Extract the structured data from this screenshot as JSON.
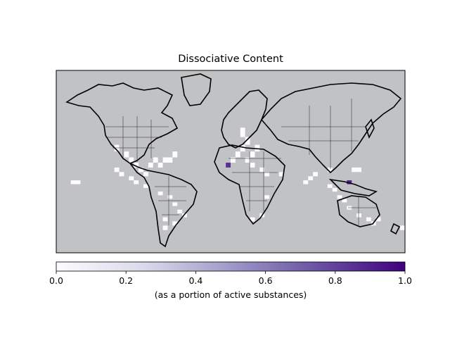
{
  "chart_data": {
    "type": "heatmap",
    "title": "Dissociative Content",
    "colorbar": {
      "label": "(as a portion of active substances)",
      "range": [
        0.0,
        1.0
      ],
      "ticks": [
        "0.0",
        "0.2",
        "0.4",
        "0.6",
        "0.8",
        "1.0"
      ],
      "tick_values": [
        0.0,
        0.2,
        0.4,
        0.6,
        0.8,
        1.0
      ],
      "colormap": [
        "#fcfbfd",
        "#dadaeb",
        "#9e9ac8",
        "#6a51a3",
        "#3f007d"
      ]
    },
    "background_color": "#c1c2c4",
    "grid_cells": [
      {
        "lon": -165,
        "lat": 20,
        "value": 0.0
      },
      {
        "lon": -160,
        "lat": 20,
        "value": 0.0
      },
      {
        "lon": -120,
        "lat": 55,
        "value": 0.0
      },
      {
        "lon": -110,
        "lat": 50,
        "value": 0.0
      },
      {
        "lon": -105,
        "lat": 45,
        "value": 0.0
      },
      {
        "lon": -100,
        "lat": 40,
        "value": 0.0
      },
      {
        "lon": -95,
        "lat": 35,
        "value": 0.0
      },
      {
        "lon": -90,
        "lat": 30,
        "value": 0.0
      },
      {
        "lon": -85,
        "lat": 40,
        "value": 0.0
      },
      {
        "lon": -80,
        "lat": 45,
        "value": 0.0
      },
      {
        "lon": -75,
        "lat": 40,
        "value": 0.0
      },
      {
        "lon": -70,
        "lat": 45,
        "value": 0.0
      },
      {
        "lon": -65,
        "lat": 45,
        "value": 0.0
      },
      {
        "lon": -60,
        "lat": 50,
        "value": 0.0
      },
      {
        "lon": -120,
        "lat": 35,
        "value": 0.0
      },
      {
        "lon": -115,
        "lat": 30,
        "value": 0.0
      },
      {
        "lon": -105,
        "lat": 25,
        "value": 0.0
      },
      {
        "lon": -100,
        "lat": 20,
        "value": 0.0
      },
      {
        "lon": -90,
        "lat": 15,
        "value": 0.0
      },
      {
        "lon": -75,
        "lat": 5,
        "value": 0.0
      },
      {
        "lon": -65,
        "lat": 0,
        "value": 0.0
      },
      {
        "lon": -60,
        "lat": -10,
        "value": 0.0
      },
      {
        "lon": -55,
        "lat": -20,
        "value": 0.0
      },
      {
        "lon": -50,
        "lat": -25,
        "value": 0.0
      },
      {
        "lon": -60,
        "lat": -35,
        "value": 0.0
      },
      {
        "lon": -70,
        "lat": -30,
        "value": 0.0
      },
      {
        "lon": -70,
        "lat": -40,
        "value": 0.0
      },
      {
        "lon": -5,
        "lat": 40,
        "value": 0.85
      },
      {
        "lon": 0,
        "lat": 45,
        "value": 0.0
      },
      {
        "lon": 5,
        "lat": 50,
        "value": 0.0
      },
      {
        "lon": 10,
        "lat": 55,
        "value": 0.0
      },
      {
        "lon": 15,
        "lat": 60,
        "value": 0.0
      },
      {
        "lon": 10,
        "lat": 65,
        "value": 0.0
      },
      {
        "lon": 15,
        "lat": 45,
        "value": 0.0
      },
      {
        "lon": 20,
        "lat": 50,
        "value": 0.0
      },
      {
        "lon": 25,
        "lat": 55,
        "value": 0.0
      },
      {
        "lon": 20,
        "lat": 40,
        "value": 0.0
      },
      {
        "lon": 30,
        "lat": 35,
        "value": 0.0
      },
      {
        "lon": 35,
        "lat": 30,
        "value": 0.0
      },
      {
        "lon": 50,
        "lat": 30,
        "value": 0.0
      },
      {
        "lon": 75,
        "lat": 20,
        "value": 0.0
      },
      {
        "lon": 80,
        "lat": 25,
        "value": 0.0
      },
      {
        "lon": 85,
        "lat": 30,
        "value": 0.0
      },
      {
        "lon": 100,
        "lat": 35,
        "value": 0.0
      },
      {
        "lon": 100,
        "lat": 15,
        "value": 0.0
      },
      {
        "lon": 105,
        "lat": 10,
        "value": 0.0
      },
      {
        "lon": 110,
        "lat": 0,
        "value": 0.0
      },
      {
        "lon": 115,
        "lat": -5,
        "value": 0.0
      },
      {
        "lon": 120,
        "lat": 20,
        "value": 0.9
      },
      {
        "lon": 125,
        "lat": 35,
        "value": 0.0
      },
      {
        "lon": 130,
        "lat": 35,
        "value": 0.0
      },
      {
        "lon": 120,
        "lat": -15,
        "value": 0.0
      },
      {
        "lon": 130,
        "lat": -25,
        "value": 0.0
      },
      {
        "lon": 140,
        "lat": -30,
        "value": 0.0
      },
      {
        "lon": 145,
        "lat": -35,
        "value": 0.0
      },
      {
        "lon": 150,
        "lat": -30,
        "value": 0.0
      },
      {
        "lon": 175,
        "lat": -40,
        "value": 0.0
      },
      {
        "lon": 20,
        "lat": -30,
        "value": 0.0
      },
      {
        "lon": 30,
        "lat": -25,
        "value": 0.0
      },
      {
        "lon": 35,
        "lat": 0,
        "value": 0.0
      }
    ]
  }
}
